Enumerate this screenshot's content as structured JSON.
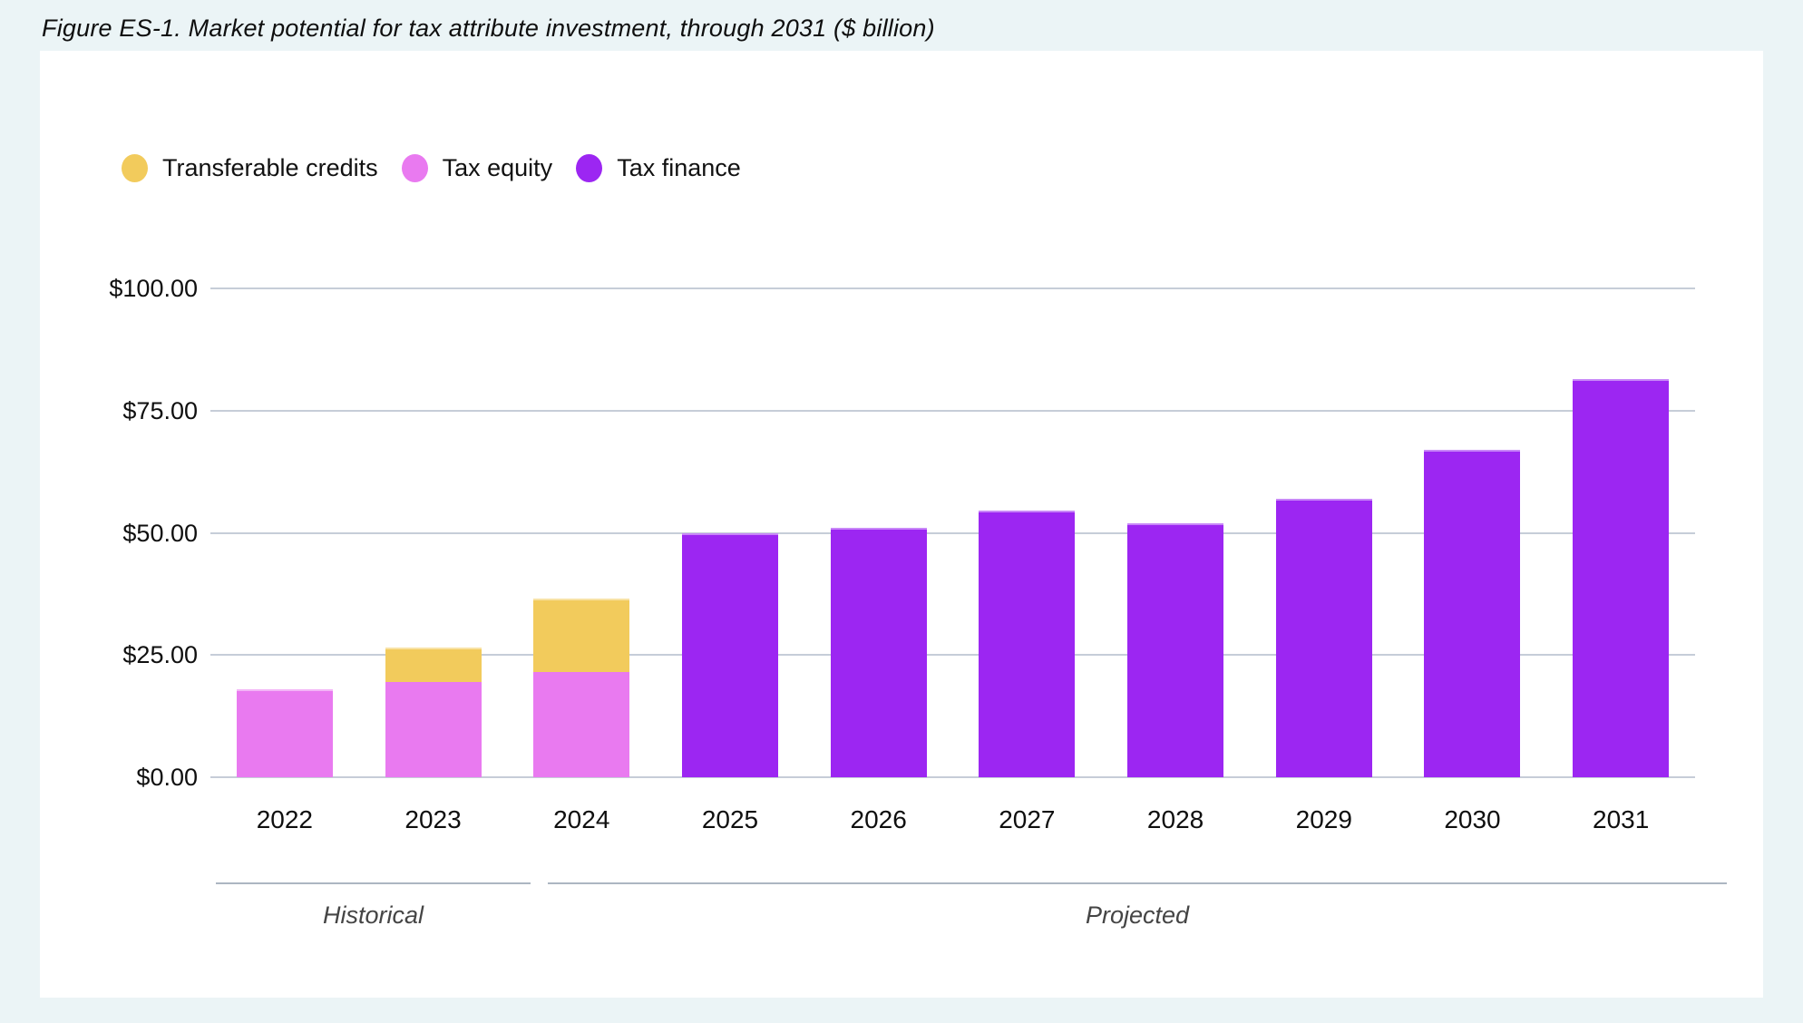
{
  "figure": {
    "title": "Figure ES-1. Market potential for tax attribute investment, through 2031 ($ billion)"
  },
  "legend": {
    "items": [
      {
        "label": "Transferable credits",
        "color": "#F2CB5C"
      },
      {
        "label": "Tax equity",
        "color": "#E97AF0"
      },
      {
        "label": "Tax finance",
        "color": "#9C26F2"
      }
    ]
  },
  "sections": {
    "historical_label": "Historical",
    "projected_label": "Projected"
  },
  "chart_data": {
    "type": "bar",
    "stacked": true,
    "title": "Market potential for tax attribute investment, through 2031",
    "unit": "$ billion",
    "categories": [
      "2022",
      "2023",
      "2024",
      "2025",
      "2026",
      "2027",
      "2028",
      "2029",
      "2030",
      "2031"
    ],
    "series": [
      {
        "name": "Transferable credits",
        "color": "#F2CB5C",
        "values": [
          0,
          7,
          15,
          0,
          0,
          0,
          0,
          0,
          0,
          0
        ]
      },
      {
        "name": "Tax equity",
        "color": "#E97AF0",
        "values": [
          18,
          19.5,
          21.5,
          0,
          0,
          0,
          0,
          0,
          0,
          0
        ]
      },
      {
        "name": "Tax finance",
        "color": "#9C26F2",
        "values": [
          0,
          0,
          0,
          50,
          51,
          54.5,
          52,
          57,
          67,
          81.5
        ]
      }
    ],
    "stack_bottom_to_top": [
      "Tax equity",
      "Transferable credits",
      "Tax finance"
    ],
    "ylim": [
      0,
      100
    ],
    "yticks": [
      0,
      25,
      50,
      75,
      100
    ],
    "ytick_labels": [
      "$0.00",
      "$25.00",
      "$50.00",
      "$75.00",
      "$100.00"
    ],
    "grid": true,
    "legend_position": "top-left",
    "annotations": [
      {
        "label": "Historical",
        "categories_under_line": [
          "2022",
          "2023"
        ]
      },
      {
        "label": "Projected",
        "categories_under_line": [
          "2024",
          "2025",
          "2026",
          "2027",
          "2028",
          "2029",
          "2030",
          "2031"
        ]
      }
    ]
  },
  "colors": {
    "page_background": "#EBF4F6",
    "card_background": "#FFFFFF",
    "gridline": "#C6CDD8",
    "section_divider": "#ACB6C2",
    "text": "#0F0F0F",
    "section_label_text": "#454545"
  }
}
